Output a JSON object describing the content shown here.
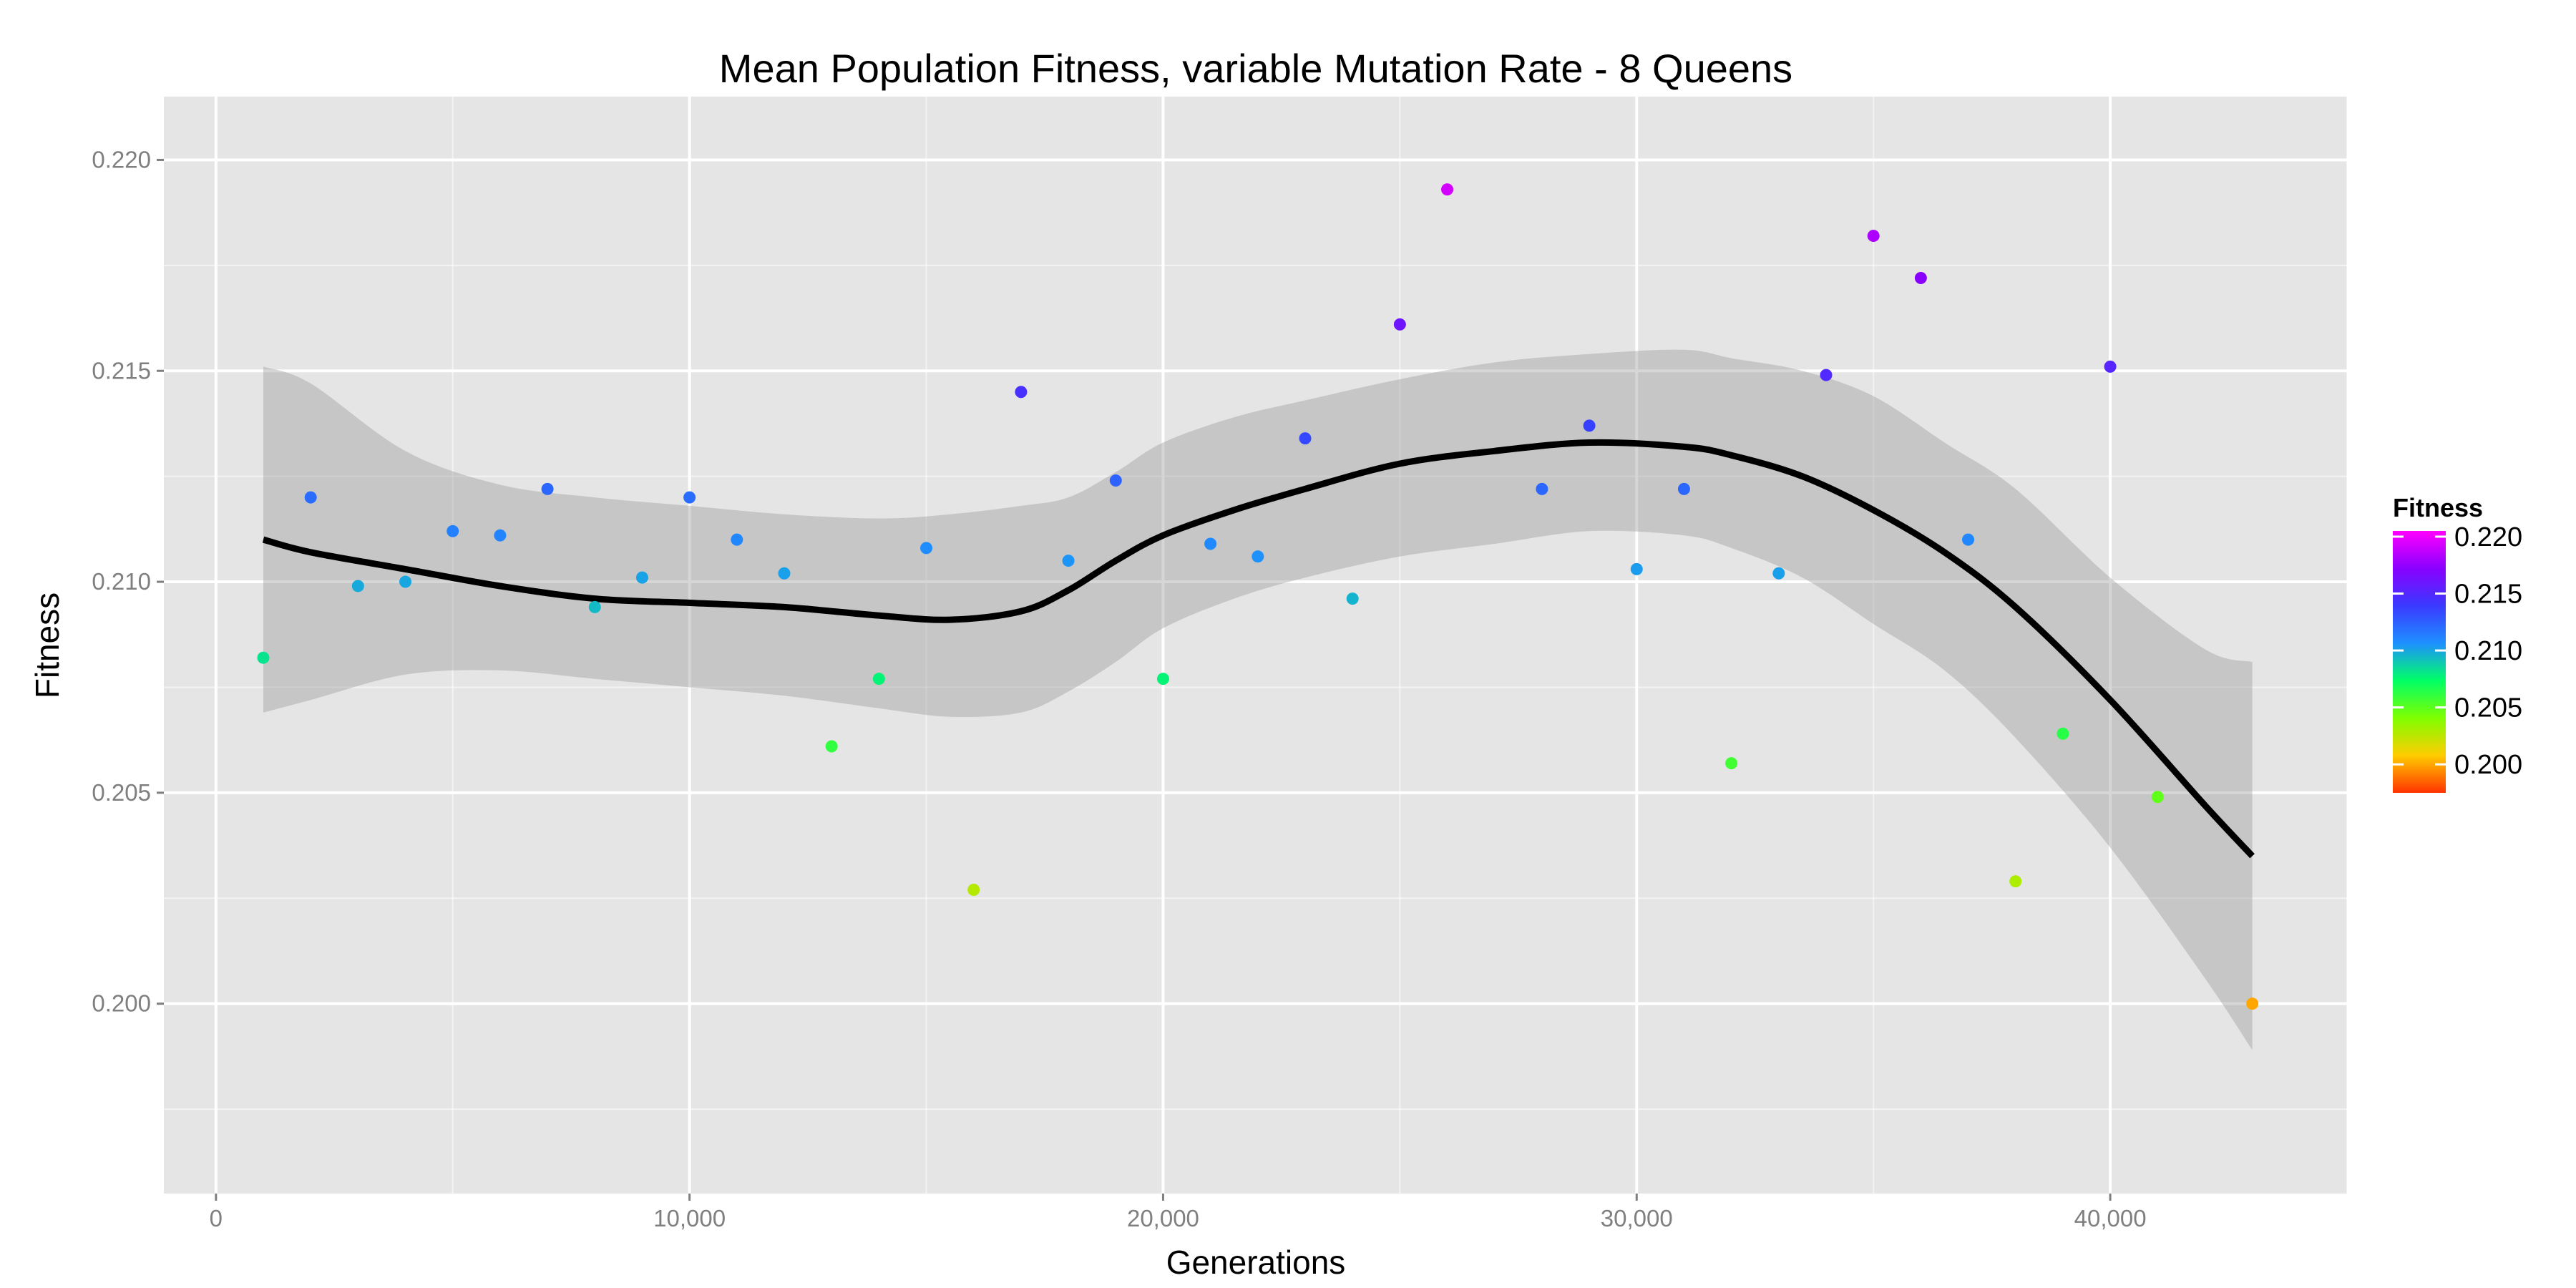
{
  "chart_data": {
    "type": "scatter",
    "title": "Mean Population Fitness, variable Mutation Rate - 8 Queens",
    "xlabel": "Generations",
    "ylabel": "Fitness",
    "xlim": [
      -1100,
      45000
    ],
    "ylim": [
      0.1955,
      0.2215
    ],
    "x_ticks": [
      0,
      10000,
      20000,
      30000,
      40000
    ],
    "x_tick_labels": [
      "0",
      "10,000",
      "20,000",
      "30,000",
      "40,000"
    ],
    "y_ticks": [
      0.2,
      0.205,
      0.21,
      0.215,
      0.22
    ],
    "y_tick_labels": [
      "0.200",
      "0.205",
      "0.210",
      "0.215",
      "0.220"
    ],
    "grid": true,
    "background": "#e5e5e5",
    "series": [
      {
        "type": "scatter",
        "x": [
          1000,
          2000,
          3000,
          4000,
          5000,
          6000,
          7000,
          8000,
          9000,
          10000,
          11000,
          12000,
          13000,
          14000,
          15000,
          16000,
          17000,
          18000,
          19000,
          20000,
          21000,
          22000,
          23000,
          24000,
          25000,
          26000,
          28000,
          29000,
          30000,
          31000,
          32000,
          33000,
          34000,
          35000,
          36000,
          37000,
          38000,
          39000,
          40000,
          41000,
          43000
        ],
        "y": [
          0.2082,
          0.212,
          0.2099,
          0.21,
          0.2112,
          0.2111,
          0.2122,
          0.2094,
          0.2101,
          0.212,
          0.211,
          0.2102,
          0.2061,
          0.2077,
          0.2108,
          0.2027,
          0.2145,
          0.2105,
          0.2124,
          0.2077,
          0.2109,
          0.2106,
          0.2134,
          0.2096,
          0.2161,
          0.2193,
          0.2122,
          0.2137,
          0.2103,
          0.2122,
          0.2057,
          0.2102,
          0.2149,
          0.2182,
          0.2172,
          0.211,
          0.2029,
          0.2064,
          0.2151,
          0.2049,
          0.2
        ]
      },
      {
        "type": "smooth",
        "x": [
          1000,
          2000,
          4000,
          6000,
          8000,
          10000,
          12000,
          14000,
          15500,
          17000,
          18000,
          19000,
          20000,
          21500,
          23000,
          25000,
          27000,
          29000,
          31000,
          32000,
          33500,
          35000,
          36500,
          38000,
          40000,
          42000,
          43000
        ],
        "y": [
          0.211,
          0.2107,
          0.2103,
          0.2099,
          0.2096,
          0.2095,
          0.2094,
          0.2092,
          0.2091,
          0.2093,
          0.2098,
          0.2105,
          0.2111,
          0.2117,
          0.2122,
          0.2128,
          0.2131,
          0.2133,
          0.2132,
          0.213,
          0.2125,
          0.2117,
          0.2107,
          0.2094,
          0.2072,
          0.2047,
          0.2035
        ],
        "ci_upper": [
          0.2151,
          0.2147,
          0.2131,
          0.2123,
          0.212,
          0.2118,
          0.2116,
          0.2115,
          0.2116,
          0.2118,
          0.212,
          0.2126,
          0.2133,
          0.2139,
          0.2143,
          0.2148,
          0.2152,
          0.2154,
          0.2155,
          0.2153,
          0.215,
          0.2144,
          0.2133,
          0.2122,
          0.2101,
          0.2084,
          0.2081
        ],
        "ci_lower": [
          0.2069,
          0.2072,
          0.2078,
          0.2079,
          0.2077,
          0.2075,
          0.2073,
          0.207,
          0.2068,
          0.2069,
          0.2074,
          0.2081,
          0.2089,
          0.2096,
          0.2101,
          0.2106,
          0.2109,
          0.2112,
          0.2111,
          0.2108,
          0.2101,
          0.209,
          0.2079,
          0.2063,
          0.2037,
          0.2006,
          0.1989
        ]
      }
    ],
    "color_scale": {
      "title": "Fitness",
      "min": 0.1975,
      "max": 0.2205,
      "ticks": [
        0.2,
        0.205,
        0.21,
        0.215,
        0.22
      ],
      "tick_labels": [
        "0.200",
        "0.205",
        "0.210",
        "0.215",
        "0.220"
      ],
      "stops": [
        "#ff3300",
        "#ffcc00",
        "#7fff00",
        "#00ff66",
        "#1e90ff",
        "#3a3aff",
        "#8a00ff",
        "#ff00ff"
      ],
      "legend_position": "right"
    },
    "colors": {
      "smooth_line": "#000000",
      "ci_band": "#999999",
      "grid": "#ffffff"
    }
  }
}
